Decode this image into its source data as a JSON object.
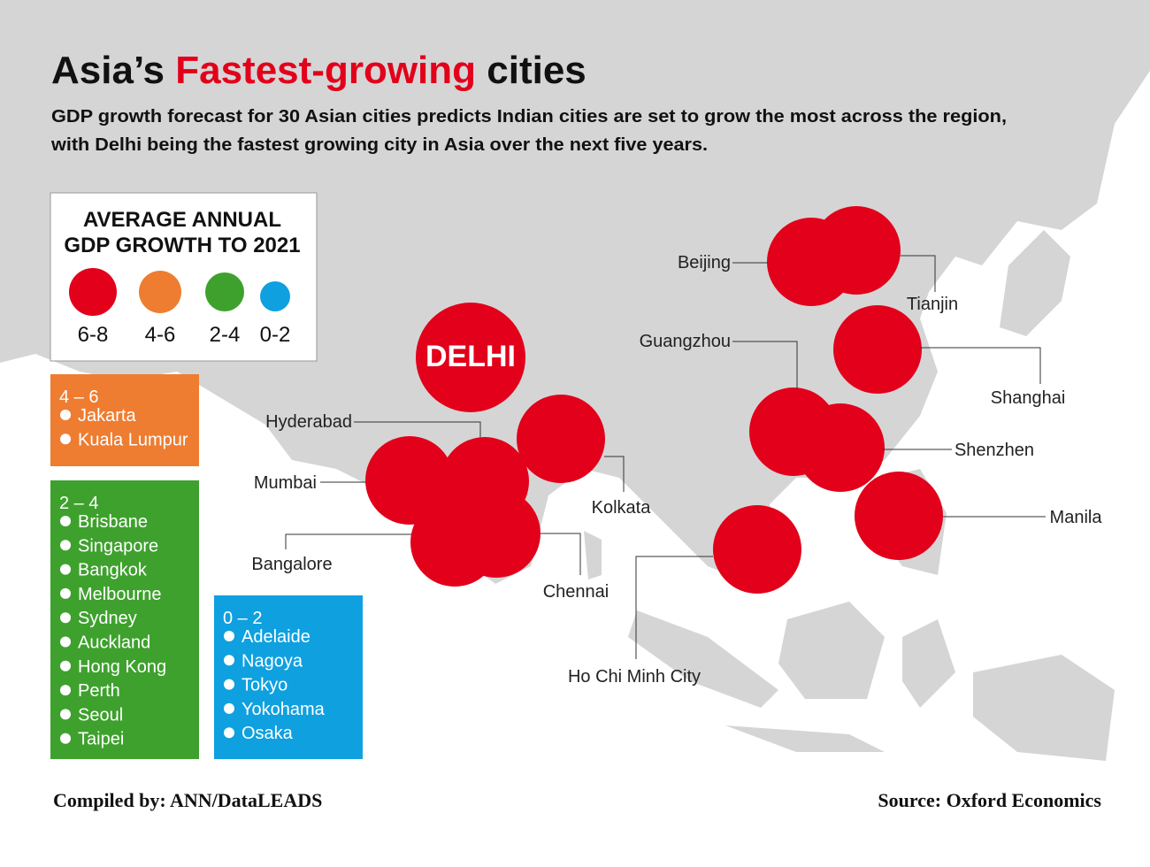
{
  "title": {
    "prefix": "Asia’s ",
    "highlight": "Fastest-growing",
    "suffix": " cities"
  },
  "subtitle": [
    "GDP growth forecast for 30 Asian cities predicts Indian cities are set to grow the most across the region,",
    "with Delhi being the fastest growing city in Asia over the next five years."
  ],
  "legend": {
    "title": [
      "AVERAGE ANNUAL",
      "GDP GROWTH TO 2021"
    ],
    "items": [
      {
        "label": "6-8",
        "color": "#e2001a"
      },
      {
        "label": "4-6",
        "color": "#ee7d31"
      },
      {
        "label": "2-4",
        "color": "#3ea12d"
      },
      {
        "label": "0-2",
        "color": "#0fa0e0"
      }
    ]
  },
  "groups": [
    {
      "range": "4 – 6",
      "cities": [
        "Jakarta",
        "Kuala Lumpur"
      ]
    },
    {
      "range": "2 – 4",
      "cities": [
        "Brisbane",
        "Singapore",
        "Bangkok",
        "Melbourne",
        "Sydney",
        "Auckland",
        "Hong Kong",
        "Perth",
        "Seoul",
        "Taipei"
      ]
    },
    {
      "range": "0 – 2",
      "cities": [
        "Adelaide",
        "Nagoya",
        "Tokyo",
        "Yokohama",
        "Osaka"
      ]
    }
  ],
  "map_cities": [
    "DELHI",
    "Tianjin",
    "Beijing",
    "Shanghai",
    "Guangzhou",
    "Shenzhen",
    "Kolkata",
    "Mumbai",
    "Hyderabad",
    "Bangalore",
    "Chennai",
    "Manila",
    "Ho Chi Minh City"
  ],
  "footer": {
    "left": "Compiled by: ANN/DataLEADS",
    "right": "Source: Oxford Economics"
  }
}
